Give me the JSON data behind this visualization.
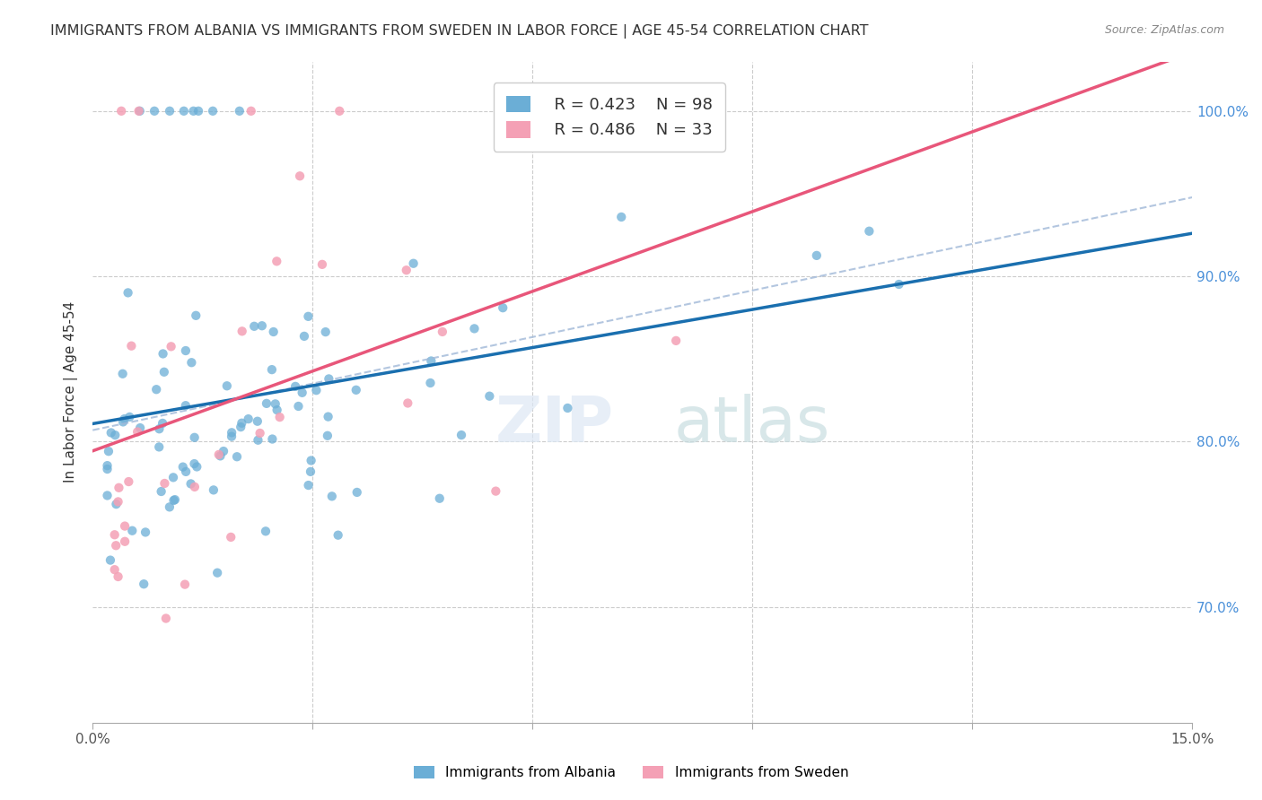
{
  "title": "IMMIGRANTS FROM ALBANIA VS IMMIGRANTS FROM SWEDEN IN LABOR FORCE | AGE 45-54 CORRELATION CHART",
  "source": "Source: ZipAtlas.com",
  "ylabel_label": "In Labor Force | Age 45-54",
  "ytick_values": [
    0.7,
    0.8,
    0.9,
    1.0
  ],
  "xlim": [
    0.0,
    0.15
  ],
  "ylim": [
    0.63,
    1.03
  ],
  "r_albania": 0.423,
  "n_albania": 98,
  "r_sweden": 0.486,
  "n_sweden": 33,
  "legend_albania": "Immigrants from Albania",
  "legend_sweden": "Immigrants from Sweden",
  "albania_color": "#6baed6",
  "sweden_color": "#f4a0b5",
  "trendline_albania_color": "#1a6faf",
  "trendline_sweden_color": "#e8567a",
  "trendline_dashed_color": "#a0b8d8"
}
